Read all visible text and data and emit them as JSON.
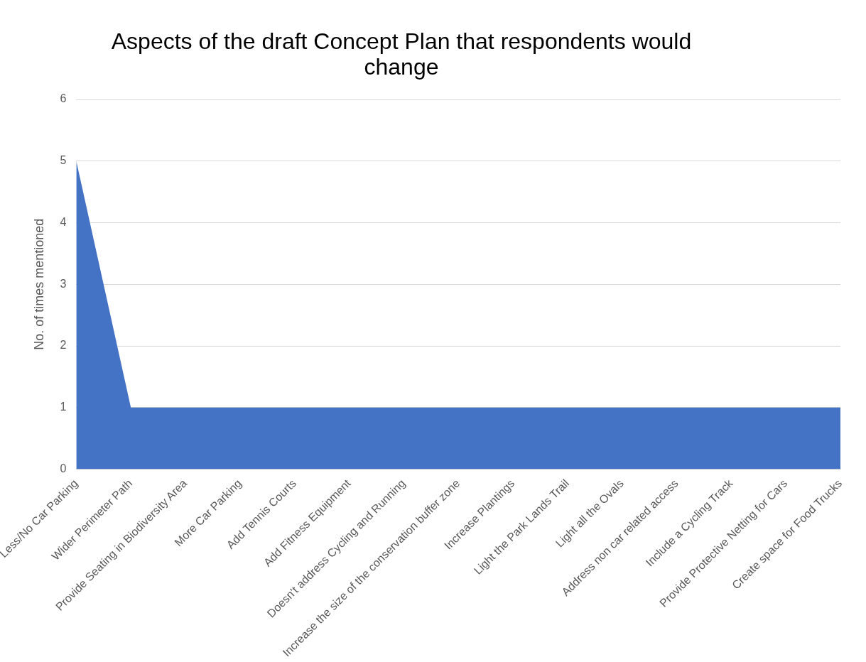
{
  "chart_data": {
    "type": "area",
    "title": "Aspects of the draft Concept Plan that respondents would change",
    "ylabel": "No. of times mentioned",
    "categories": [
      "Less/No Car Parking",
      "Wider Perimeter Path",
      "Provide Seating in Biodiversity Area",
      "More Car Parking",
      "Add Tennis Courts",
      "Add Fitness Equipment",
      "Doesn't address Cycling and Running",
      "Increase the size of the conservation buffer zone",
      "Increase Plantings",
      "Light the Park Lands Trail",
      "Light all the Ovals",
      "Address non car related access",
      "Include a Cycling Track",
      "Provide Protective Netting for Cars",
      "Create space for Food Trucks"
    ],
    "values": [
      5,
      1,
      1,
      1,
      1,
      1,
      1,
      1,
      1,
      1,
      1,
      1,
      1,
      1,
      1
    ],
    "color": "#4472c4",
    "ylim": [
      0,
      6
    ],
    "yticks": [
      0,
      1,
      2,
      3,
      4,
      5,
      6
    ],
    "grid": "y",
    "legend": false
  }
}
